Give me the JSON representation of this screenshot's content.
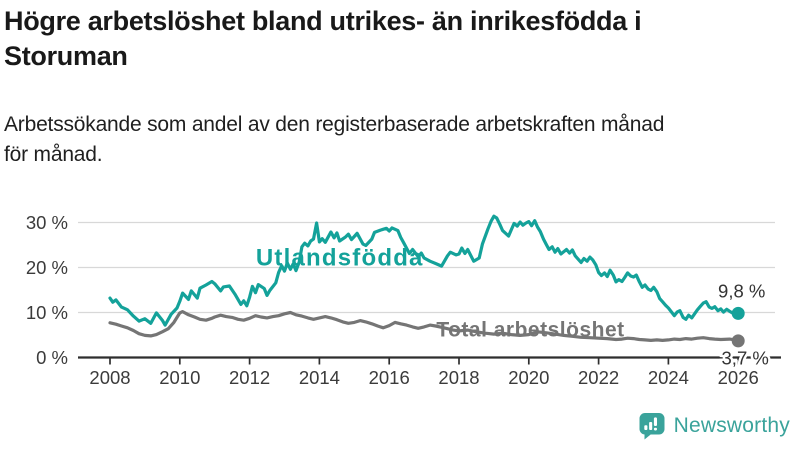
{
  "header": {
    "title_lines": [
      "Högre arbetslöshet bland utrikes- än inrikesfödda i",
      "Storuman"
    ],
    "subtitle_lines": [
      "Arbetssökande som andel av den registerbaserade arbetskraften månad",
      "för månad."
    ]
  },
  "branding": {
    "logo_text": "Newsworthy",
    "logo_color": "#3aa39b"
  },
  "colors": {
    "foreign_born_line": "#14a29a",
    "total_line": "#757575",
    "gridline": "#d8d8d8",
    "axis": "#2e2e2e",
    "axis_label": "#3b3b3b",
    "value_label": "#333333"
  },
  "chart_data": {
    "type": "line",
    "title": "Högre arbetslöshet bland utrikes- än inrikesfödda i Storuman",
    "subtitle": "Arbetssökande som andel av den registerbaserade arbetskraften månad för månad.",
    "unit": "%",
    "grid": true,
    "x_axis": {
      "ticks": [
        2008,
        2010,
        2012,
        2014,
        2016,
        2018,
        2020,
        2022,
        2024,
        2026
      ],
      "range": [
        2007.1,
        2027.2
      ]
    },
    "y_axis": {
      "tick_values": [
        0,
        10,
        20,
        30
      ],
      "tick_labels": [
        "0 %",
        "10 %",
        "20 %",
        "30 %"
      ],
      "range": [
        0,
        33
      ]
    },
    "series": [
      {
        "id": "total",
        "name": "Total arbetslöshet",
        "color": "#757575",
        "end_label": "3,7 %",
        "end_value": 3.7,
        "label_pos": {
          "year": 2017.35,
          "value": 4.7,
          "font_size": 21,
          "letter_spacing": 0.5
        },
        "end_label_pos": {
          "year": 2026.2,
          "value": -1.5
        },
        "points": [
          [
            2008.0,
            7.7
          ],
          [
            2008.17,
            7.4
          ],
          [
            2008.33,
            7.0
          ],
          [
            2008.5,
            6.6
          ],
          [
            2008.67,
            6.0
          ],
          [
            2008.83,
            5.3
          ],
          [
            2009.0,
            4.9
          ],
          [
            2009.17,
            4.8
          ],
          [
            2009.33,
            5.1
          ],
          [
            2009.5,
            5.7
          ],
          [
            2009.67,
            6.4
          ],
          [
            2009.83,
            7.8
          ],
          [
            2010.0,
            9.9
          ],
          [
            2010.08,
            10.2
          ],
          [
            2010.25,
            9.5
          ],
          [
            2010.42,
            9.0
          ],
          [
            2010.58,
            8.5
          ],
          [
            2010.75,
            8.3
          ],
          [
            2010.92,
            8.7
          ],
          [
            2011.0,
            9.0
          ],
          [
            2011.17,
            9.4
          ],
          [
            2011.33,
            9.1
          ],
          [
            2011.5,
            8.9
          ],
          [
            2011.67,
            8.5
          ],
          [
            2011.83,
            8.3
          ],
          [
            2012.0,
            8.7
          ],
          [
            2012.17,
            9.3
          ],
          [
            2012.33,
            9.0
          ],
          [
            2012.5,
            8.8
          ],
          [
            2012.67,
            9.1
          ],
          [
            2012.83,
            9.3
          ],
          [
            2013.0,
            9.7
          ],
          [
            2013.17,
            10.0
          ],
          [
            2013.33,
            9.5
          ],
          [
            2013.5,
            9.2
          ],
          [
            2013.67,
            8.8
          ],
          [
            2013.83,
            8.5
          ],
          [
            2014.0,
            8.8
          ],
          [
            2014.17,
            9.1
          ],
          [
            2014.33,
            8.8
          ],
          [
            2014.5,
            8.4
          ],
          [
            2014.67,
            7.9
          ],
          [
            2014.83,
            7.6
          ],
          [
            2015.0,
            7.8
          ],
          [
            2015.17,
            8.2
          ],
          [
            2015.33,
            7.9
          ],
          [
            2015.5,
            7.5
          ],
          [
            2015.67,
            7.0
          ],
          [
            2015.83,
            6.6
          ],
          [
            2016.0,
            7.1
          ],
          [
            2016.17,
            7.8
          ],
          [
            2016.33,
            7.5
          ],
          [
            2016.5,
            7.2
          ],
          [
            2016.67,
            6.8
          ],
          [
            2016.83,
            6.5
          ],
          [
            2017.0,
            6.8
          ],
          [
            2017.17,
            7.2
          ],
          [
            2017.33,
            7.0
          ],
          [
            2017.5,
            6.7
          ],
          [
            2017.67,
            6.4
          ],
          [
            2017.83,
            6.1
          ],
          [
            2018.0,
            5.9
          ],
          [
            2018.25,
            6.1
          ],
          [
            2018.5,
            5.7
          ],
          [
            2018.75,
            5.4
          ],
          [
            2019.0,
            5.2
          ],
          [
            2019.25,
            5.4
          ],
          [
            2019.5,
            5.1
          ],
          [
            2019.75,
            4.9
          ],
          [
            2020.0,
            5.1
          ],
          [
            2020.25,
            5.7
          ],
          [
            2020.5,
            5.5
          ],
          [
            2020.75,
            5.2
          ],
          [
            2021.0,
            4.9
          ],
          [
            2021.25,
            4.7
          ],
          [
            2021.5,
            4.5
          ],
          [
            2021.75,
            4.4
          ],
          [
            2022.0,
            4.3
          ],
          [
            2022.25,
            4.2
          ],
          [
            2022.5,
            4.0
          ],
          [
            2022.67,
            4.1
          ],
          [
            2022.83,
            4.3
          ],
          [
            2023.0,
            4.2
          ],
          [
            2023.17,
            4.0
          ],
          [
            2023.33,
            3.9
          ],
          [
            2023.5,
            3.8
          ],
          [
            2023.67,
            3.9
          ],
          [
            2023.83,
            3.8
          ],
          [
            2024.0,
            3.9
          ],
          [
            2024.17,
            4.1
          ],
          [
            2024.33,
            4.0
          ],
          [
            2024.5,
            4.2
          ],
          [
            2024.67,
            4.1
          ],
          [
            2024.83,
            4.3
          ],
          [
            2025.0,
            4.4
          ],
          [
            2025.17,
            4.2
          ],
          [
            2025.33,
            4.1
          ],
          [
            2025.5,
            4.0
          ],
          [
            2025.75,
            4.1
          ],
          [
            2025.92,
            3.9
          ],
          [
            2026.0,
            3.7
          ]
        ]
      },
      {
        "id": "utlandsfodda",
        "name": "Utlandsfödda",
        "color": "#14a29a",
        "end_label": "9,8 %",
        "end_value": 9.8,
        "label_pos": {
          "year": 2012.18,
          "value": 20.5,
          "font_size": 24,
          "letter_spacing": 1.2
        },
        "end_label_pos": {
          "year": 2026.1,
          "value": 13.3
        },
        "points": [
          [
            2008.0,
            13.2
          ],
          [
            2008.08,
            12.3
          ],
          [
            2008.17,
            12.8
          ],
          [
            2008.33,
            11.2
          ],
          [
            2008.5,
            10.6
          ],
          [
            2008.67,
            9.2
          ],
          [
            2008.83,
            8.1
          ],
          [
            2009.0,
            8.6
          ],
          [
            2009.17,
            7.6
          ],
          [
            2009.33,
            9.9
          ],
          [
            2009.5,
            8.3
          ],
          [
            2009.58,
            7.2
          ],
          [
            2009.75,
            9.6
          ],
          [
            2009.92,
            11.0
          ],
          [
            2010.0,
            12.5
          ],
          [
            2010.08,
            14.3
          ],
          [
            2010.25,
            12.9
          ],
          [
            2010.33,
            14.8
          ],
          [
            2010.5,
            13.2
          ],
          [
            2010.58,
            15.4
          ],
          [
            2010.75,
            16.1
          ],
          [
            2010.92,
            16.9
          ],
          [
            2011.0,
            16.4
          ],
          [
            2011.17,
            14.8
          ],
          [
            2011.25,
            15.7
          ],
          [
            2011.42,
            15.9
          ],
          [
            2011.58,
            14.1
          ],
          [
            2011.75,
            11.8
          ],
          [
            2011.83,
            12.6
          ],
          [
            2011.92,
            11.5
          ],
          [
            2012.0,
            13.4
          ],
          [
            2012.08,
            15.8
          ],
          [
            2012.17,
            14.4
          ],
          [
            2012.25,
            16.2
          ],
          [
            2012.42,
            15.3
          ],
          [
            2012.5,
            13.8
          ],
          [
            2012.58,
            14.9
          ],
          [
            2012.75,
            16.6
          ],
          [
            2012.83,
            18.9
          ],
          [
            2012.92,
            20.4
          ],
          [
            2013.0,
            19.2
          ],
          [
            2013.08,
            21.0
          ],
          [
            2013.17,
            19.6
          ],
          [
            2013.25,
            20.8
          ],
          [
            2013.33,
            19.3
          ],
          [
            2013.42,
            21.2
          ],
          [
            2013.5,
            24.6
          ],
          [
            2013.58,
            25.4
          ],
          [
            2013.67,
            24.8
          ],
          [
            2013.75,
            25.9
          ],
          [
            2013.83,
            26.3
          ],
          [
            2013.92,
            29.9
          ],
          [
            2014.0,
            25.7
          ],
          [
            2014.08,
            26.4
          ],
          [
            2014.17,
            25.6
          ],
          [
            2014.33,
            27.9
          ],
          [
            2014.42,
            26.6
          ],
          [
            2014.5,
            27.7
          ],
          [
            2014.58,
            25.9
          ],
          [
            2014.75,
            26.8
          ],
          [
            2014.83,
            27.4
          ],
          [
            2014.92,
            26.2
          ],
          [
            2015.0,
            26.9
          ],
          [
            2015.08,
            27.6
          ],
          [
            2015.25,
            25.2
          ],
          [
            2015.33,
            24.9
          ],
          [
            2015.5,
            26.3
          ],
          [
            2015.58,
            27.8
          ],
          [
            2015.75,
            28.3
          ],
          [
            2015.92,
            28.7
          ],
          [
            2016.0,
            28.1
          ],
          [
            2016.08,
            28.8
          ],
          [
            2016.25,
            28.2
          ],
          [
            2016.33,
            26.7
          ],
          [
            2016.42,
            25.4
          ],
          [
            2016.58,
            23.1
          ],
          [
            2016.67,
            24.0
          ],
          [
            2016.83,
            22.4
          ],
          [
            2016.92,
            23.2
          ],
          [
            2017.0,
            22.1
          ],
          [
            2017.17,
            21.4
          ],
          [
            2017.33,
            20.9
          ],
          [
            2017.5,
            20.3
          ],
          [
            2017.67,
            22.6
          ],
          [
            2017.75,
            23.4
          ],
          [
            2017.92,
            22.8
          ],
          [
            2018.0,
            23.0
          ],
          [
            2018.08,
            24.3
          ],
          [
            2018.17,
            23.1
          ],
          [
            2018.25,
            24.0
          ],
          [
            2018.42,
            21.4
          ],
          [
            2018.58,
            22.1
          ],
          [
            2018.67,
            25.2
          ],
          [
            2018.83,
            28.6
          ],
          [
            2018.92,
            30.3
          ],
          [
            2019.0,
            31.4
          ],
          [
            2019.08,
            31.0
          ],
          [
            2019.17,
            29.6
          ],
          [
            2019.25,
            28.2
          ],
          [
            2019.42,
            27.0
          ],
          [
            2019.5,
            28.4
          ],
          [
            2019.58,
            29.8
          ],
          [
            2019.67,
            29.2
          ],
          [
            2019.75,
            30.1
          ],
          [
            2019.83,
            29.4
          ],
          [
            2019.92,
            29.9
          ],
          [
            2020.0,
            30.2
          ],
          [
            2020.08,
            29.3
          ],
          [
            2020.17,
            30.4
          ],
          [
            2020.25,
            29.0
          ],
          [
            2020.33,
            28.0
          ],
          [
            2020.42,
            26.3
          ],
          [
            2020.5,
            25.1
          ],
          [
            2020.58,
            24.0
          ],
          [
            2020.67,
            24.6
          ],
          [
            2020.75,
            23.4
          ],
          [
            2020.83,
            24.2
          ],
          [
            2020.92,
            23.0
          ],
          [
            2021.0,
            23.5
          ],
          [
            2021.08,
            24.0
          ],
          [
            2021.17,
            23.2
          ],
          [
            2021.25,
            23.9
          ],
          [
            2021.33,
            22.6
          ],
          [
            2021.42,
            21.8
          ],
          [
            2021.5,
            21.1
          ],
          [
            2021.58,
            22.0
          ],
          [
            2021.67,
            21.4
          ],
          [
            2021.75,
            22.3
          ],
          [
            2021.83,
            21.7
          ],
          [
            2021.92,
            20.6
          ],
          [
            2022.0,
            18.9
          ],
          [
            2022.08,
            18.2
          ],
          [
            2022.17,
            18.8
          ],
          [
            2022.25,
            18.0
          ],
          [
            2022.33,
            19.4
          ],
          [
            2022.42,
            18.3
          ],
          [
            2022.5,
            16.8
          ],
          [
            2022.58,
            17.3
          ],
          [
            2022.67,
            16.9
          ],
          [
            2022.75,
            17.8
          ],
          [
            2022.83,
            18.8
          ],
          [
            2022.92,
            18.1
          ],
          [
            2023.0,
            17.9
          ],
          [
            2023.08,
            18.3
          ],
          [
            2023.17,
            16.8
          ],
          [
            2023.25,
            15.6
          ],
          [
            2023.33,
            16.1
          ],
          [
            2023.42,
            15.2
          ],
          [
            2023.5,
            14.9
          ],
          [
            2023.58,
            15.6
          ],
          [
            2023.67,
            14.6
          ],
          [
            2023.75,
            13.1
          ],
          [
            2023.83,
            12.4
          ],
          [
            2023.92,
            11.6
          ],
          [
            2024.0,
            11.0
          ],
          [
            2024.08,
            10.2
          ],
          [
            2024.17,
            9.3
          ],
          [
            2024.25,
            10.1
          ],
          [
            2024.33,
            10.4
          ],
          [
            2024.42,
            8.9
          ],
          [
            2024.5,
            8.5
          ],
          [
            2024.58,
            9.4
          ],
          [
            2024.67,
            8.8
          ],
          [
            2024.75,
            9.7
          ],
          [
            2024.83,
            10.6
          ],
          [
            2024.92,
            11.4
          ],
          [
            2025.0,
            12.1
          ],
          [
            2025.08,
            12.4
          ],
          [
            2025.17,
            11.2
          ],
          [
            2025.25,
            10.9
          ],
          [
            2025.33,
            11.3
          ],
          [
            2025.42,
            10.4
          ],
          [
            2025.5,
            10.8
          ],
          [
            2025.58,
            10.1
          ],
          [
            2025.67,
            10.7
          ],
          [
            2025.75,
            10.3
          ],
          [
            2025.83,
            9.9
          ],
          [
            2025.92,
            10.4
          ],
          [
            2026.0,
            9.8
          ]
        ]
      }
    ]
  }
}
